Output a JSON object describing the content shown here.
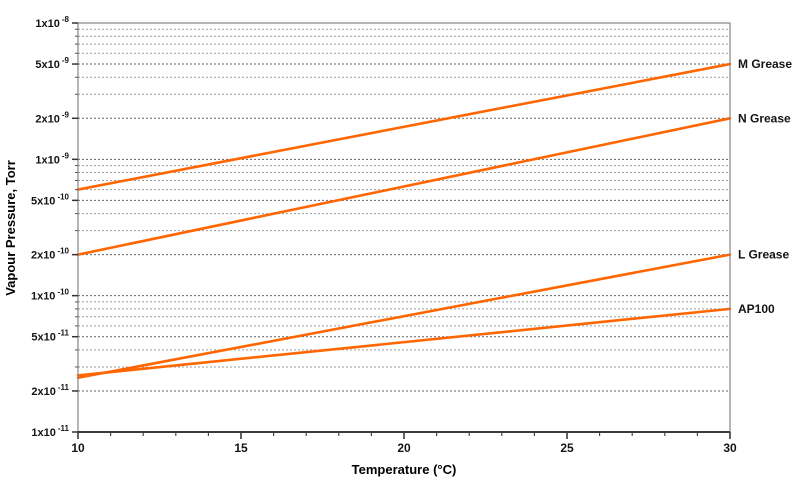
{
  "figure": {
    "background_color": "#ffffff"
  },
  "chart_data": {
    "type": "line",
    "title": "",
    "xlabel": "Temperature (°C)",
    "ylabel": "Vapour Pressure, Torr",
    "grid": "on",
    "legend_position": "right-outside-line-labels",
    "line_color": "#ff6600",
    "x_axis": {
      "min": 10,
      "max": 30,
      "scale": "linear",
      "major_ticks": [
        10,
        15,
        20,
        25,
        30
      ],
      "tick_labels": [
        "10",
        "15",
        "20",
        "25",
        "30"
      ],
      "minor_tick_step": 1
    },
    "y_axis": {
      "min": 1e-11,
      "max": 1e-08,
      "scale": "log",
      "tick_labels": [
        {
          "value": 1e-08,
          "label": "1x10^-8"
        },
        {
          "value": 5e-09,
          "label": "5x10^-9"
        },
        {
          "value": 2e-09,
          "label": "2x10^-9"
        },
        {
          "value": 1e-09,
          "label": "1x10^-9"
        },
        {
          "value": 5e-10,
          "label": "5x10^-10"
        },
        {
          "value": 2e-10,
          "label": "2x10^-10"
        },
        {
          "value": 1e-10,
          "label": "1x10^-10"
        },
        {
          "value": 5e-11,
          "label": "5x10^-11"
        },
        {
          "value": 2e-11,
          "label": "2x10^-11"
        },
        {
          "value": 1e-11,
          "label": "1x10^-11"
        }
      ]
    },
    "gridline_colors": {
      "minor": "#9a9a9a",
      "major": "#606060"
    },
    "series": [
      {
        "name": "M Grease",
        "color": "#ff6600",
        "points": [
          {
            "x": 10,
            "y": 6e-10
          },
          {
            "x": 30,
            "y": 5e-09
          }
        ]
      },
      {
        "name": "N Grease",
        "color": "#ff6600",
        "points": [
          {
            "x": 10,
            "y": 2e-10
          },
          {
            "x": 30,
            "y": 2e-09
          }
        ]
      },
      {
        "name": "L Grease",
        "color": "#ff6600",
        "points": [
          {
            "x": 10,
            "y": 2.5e-11
          },
          {
            "x": 30,
            "y": 2e-10
          }
        ]
      },
      {
        "name": "AP100",
        "color": "#ff6600",
        "points": [
          {
            "x": 10,
            "y": 2.6e-11
          },
          {
            "x": 30,
            "y": 8e-11
          }
        ]
      }
    ]
  }
}
